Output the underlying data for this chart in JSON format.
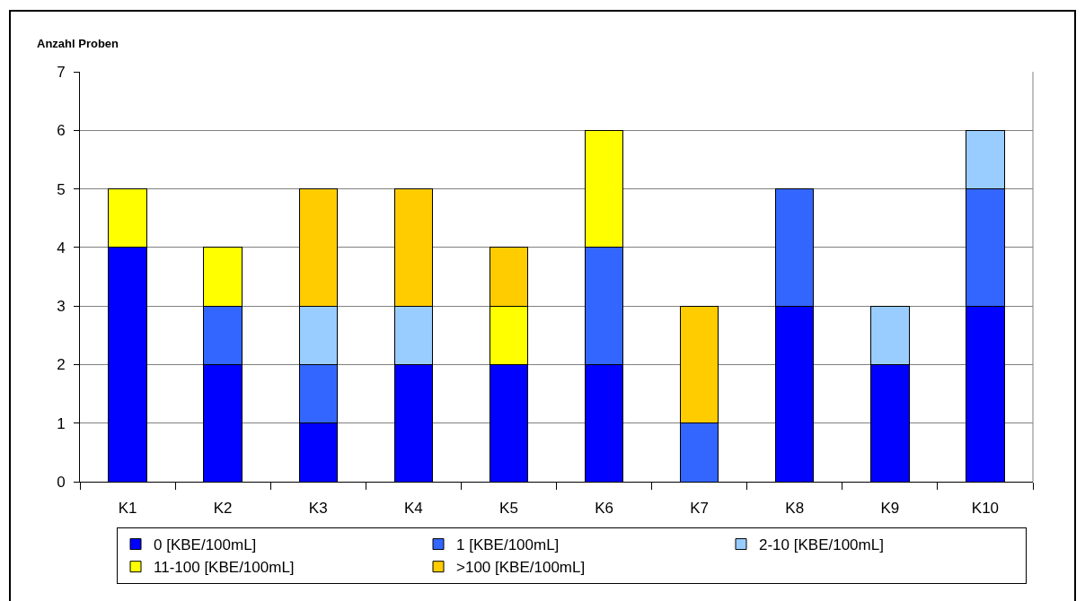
{
  "chart_data": {
    "type": "bar",
    "ylabel": "Anzahl Proben",
    "categories": [
      "K1",
      "K2",
      "K3",
      "K4",
      "K5",
      "K6",
      "K7",
      "K8",
      "K9",
      "K10"
    ],
    "stacked": true,
    "series": [
      {
        "name": "0 [KBE/100mL]",
        "color": "#0000ff",
        "values": [
          4,
          2,
          1,
          2,
          2,
          2,
          null,
          3,
          2,
          3
        ]
      },
      {
        "name": "1 [KBE/100mL]",
        "color": "#3366ff",
        "values": [
          null,
          1,
          1,
          null,
          null,
          2,
          1,
          2,
          null,
          2
        ]
      },
      {
        "name": "2-10 [KBE/100mL]",
        "color": "#99ccff",
        "values": [
          null,
          null,
          1,
          1,
          null,
          null,
          null,
          null,
          1,
          1
        ]
      },
      {
        "name": "11-100 [KBE/100mL]",
        "color": "#ffff00",
        "values": [
          1,
          1,
          null,
          null,
          1,
          2,
          null,
          null,
          null,
          null
        ]
      },
      {
        "name": ">100 [KBE/100mL]",
        "color": "#ffcc00",
        "values": [
          null,
          null,
          2,
          2,
          1,
          null,
          2,
          null,
          null,
          null
        ]
      }
    ],
    "ylim": [
      0,
      7
    ],
    "yticks": [
      0,
      1,
      2,
      3,
      4,
      5,
      6,
      7
    ],
    "grid": "y",
    "legend": "bottom"
  }
}
